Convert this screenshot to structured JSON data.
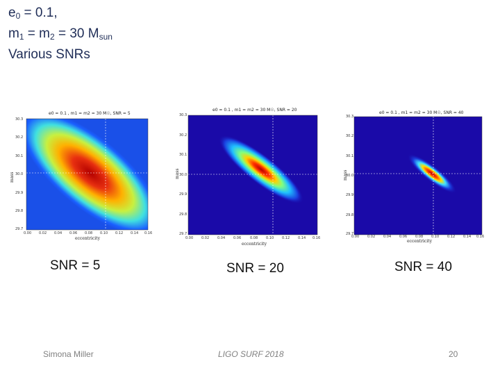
{
  "slide": {
    "title_line1": "e0 = 0.1,",
    "title_line2_a": "m",
    "title_line2_b": "1",
    "title_line2_c": " = m",
    "title_line2_d": "2",
    "title_line2_e": " = 30 M",
    "title_line2_f": "sun",
    "title_line3": "Various SNRs"
  },
  "panels": [
    {
      "plot_title": "e0 = 0.1 , m1 = m2 = 30 M☉, SNR = 5",
      "xlabel": "eccentricity",
      "ylabel": "mass",
      "yticks": [
        "30.3",
        "30.2",
        "30.1",
        "30.0",
        "29.9",
        "29.8",
        "29.7"
      ],
      "xticks": [
        "0.00",
        "0.02",
        "0.04",
        "0.06",
        "0.08",
        "0.10",
        "0.12",
        "0.14",
        "0.16"
      ],
      "caption": "SNR = 5"
    },
    {
      "plot_title": "e0 = 0.1 , m1 = m2 = 30 M☉, SNR = 20",
      "xlabel": "eccentricity",
      "ylabel": "mass",
      "yticks": [
        "30.3",
        "30.2",
        "30.1",
        "30.0",
        "29.9",
        "29.8",
        "29.7"
      ],
      "xticks": [
        "0.00",
        "0.02",
        "0.04",
        "0.06",
        "0.08",
        "0.10",
        "0.12",
        "0.14",
        "0.16"
      ],
      "caption": "SNR = 20"
    },
    {
      "plot_title": "e0 = 0.1 , m1 = m2 = 30 M☉, SNR = 40",
      "xlabel": "eccentricity",
      "ylabel": "mass",
      "yticks": [
        "30.3",
        "30.2",
        "30.1",
        "30.0",
        "29.9",
        "29.8",
        "29.7"
      ],
      "xticks": [
        "0.00",
        "0.02",
        "0.04",
        "0.06",
        "0.08",
        "0.10",
        "0.12",
        "0.14",
        "0.16"
      ],
      "caption": "SNR = 40"
    }
  ],
  "footer": {
    "author": "Simona Miller",
    "event": "LIGO SURF 2018",
    "page": "20"
  },
  "colors": {
    "title_text": "#1f2d57",
    "heatmap_background": "#1a0aa8",
    "crosshair": "#ffffff"
  }
}
